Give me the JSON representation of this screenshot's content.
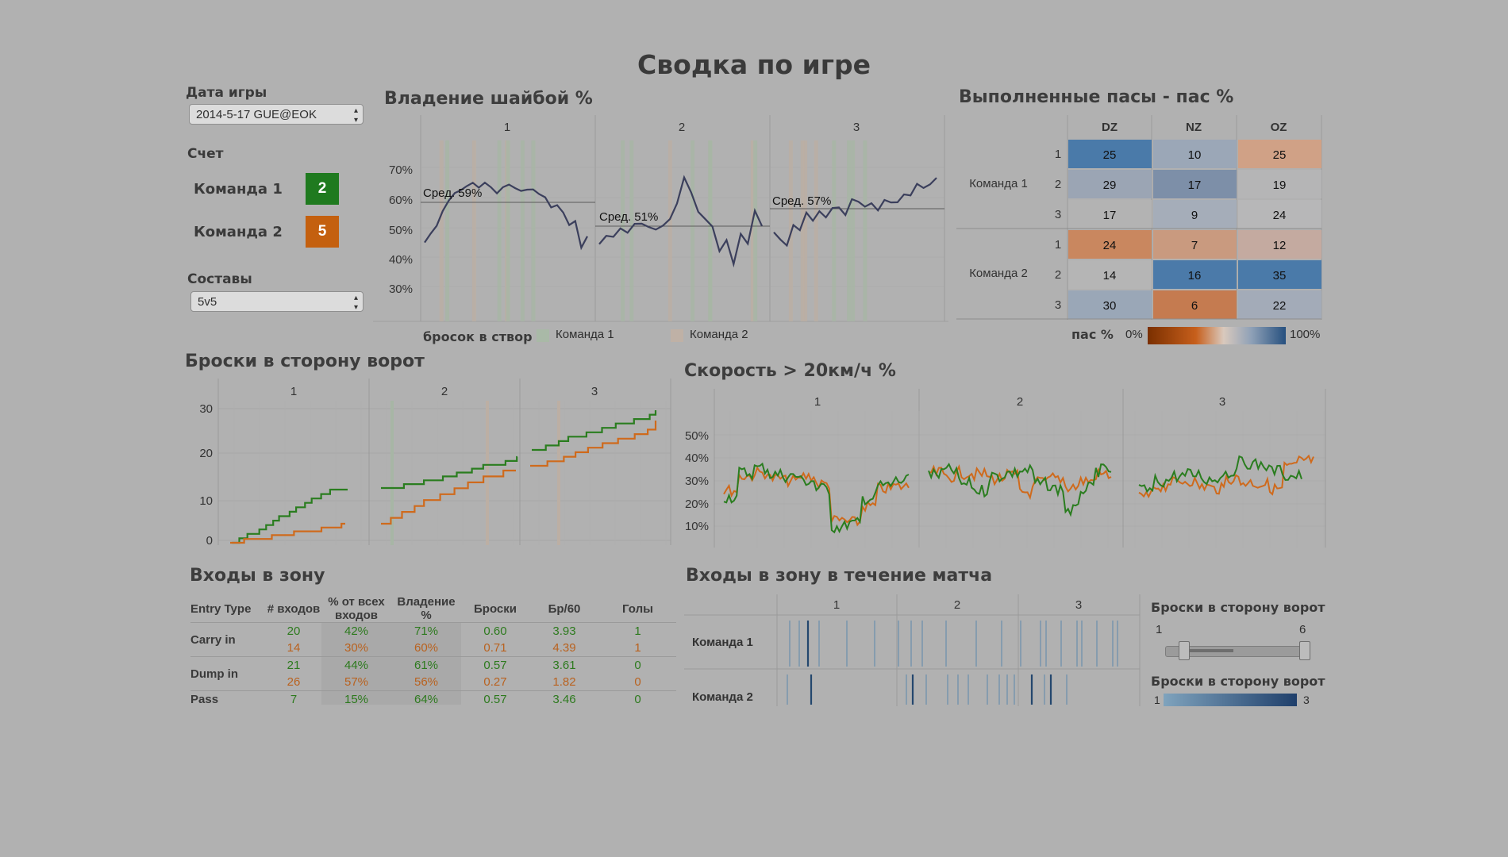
{
  "title": "Сводка по игре",
  "sidebar": {
    "date_label": "Дата игры",
    "date_value": "2014-5-17 GUE@EOK",
    "score_label": "Счет",
    "teams": [
      {
        "name": "Команда 1",
        "score": "2",
        "color": "#1f7a1f"
      },
      {
        "name": "Команда 2",
        "score": "5",
        "color": "#c4600f"
      }
    ],
    "lineup_label": "Составы",
    "lineup_value": "5v5"
  },
  "possession": {
    "title": "Владение шайбой %",
    "periods": [
      "1",
      "2",
      "3"
    ],
    "y_ticks": [
      "70%",
      "60%",
      "50%",
      "40%",
      "30%"
    ],
    "averages": [
      "Сред. 59%",
      "Сред. 51%",
      "Сред. 57%"
    ],
    "legend_title": "бросок в створ",
    "legend_items": [
      "Команда 1",
      "Команда 2"
    ]
  },
  "passes": {
    "title": "Выполненные пасы - пас %",
    "columns": [
      "DZ",
      "NZ",
      "OZ"
    ],
    "groups": [
      {
        "team": "Команда 1",
        "rows": [
          {
            "line": "1",
            "values": [
              "25",
              "10",
              "25"
            ]
          },
          {
            "line": "2",
            "values": [
              "29",
              "17",
              "19"
            ]
          },
          {
            "line": "3",
            "values": [
              "17",
              "9",
              "24"
            ]
          }
        ]
      },
      {
        "team": "Команда 2",
        "rows": [
          {
            "line": "1",
            "values": [
              "24",
              "7",
              "12"
            ]
          },
          {
            "line": "2",
            "values": [
              "14",
              "16",
              "35"
            ]
          },
          {
            "line": "3",
            "values": [
              "30",
              "6",
              "22"
            ]
          }
        ]
      }
    ],
    "cell_colors": [
      [
        "#4a7aa9",
        "#9ba7b7",
        "#d0a186"
      ],
      [
        "#9ba5b4",
        "#7d8fa8",
        "#b5b5b6"
      ],
      [
        "#b3b3b3",
        "#a5adb9",
        "#b7b7b8"
      ],
      [
        "#c9875f",
        "#c99a7f",
        "#c4aaa0"
      ],
      [
        "#b5b5b5",
        "#4b7aa9",
        "#4a7aa9"
      ],
      [
        "#9aa7b7",
        "#c57b50",
        "#a3abb8"
      ]
    ],
    "legend_label": "пас %",
    "legend_min": "0%",
    "legend_max": "100%"
  },
  "shots": {
    "title": "Броски в сторону ворот",
    "periods": [
      "1",
      "2",
      "3"
    ],
    "y_ticks": [
      "30",
      "20",
      "10",
      "0"
    ]
  },
  "speed": {
    "title": "Скорость > 20км/ч %",
    "periods": [
      "1",
      "2",
      "3"
    ],
    "y_ticks": [
      "50%",
      "40%",
      "30%",
      "20%",
      "10%"
    ]
  },
  "zone_entries": {
    "title": "Входы в зону",
    "headers": [
      "Entry Type",
      "# входов",
      "% от всех входов",
      "Владение %",
      "Броски",
      "Бр/60",
      "Голы"
    ],
    "groups": [
      {
        "type": "Carry in",
        "rows": [
          [
            "20",
            "42%",
            "71%",
            "0.60",
            "3.93",
            "1"
          ],
          [
            "14",
            "30%",
            "60%",
            "0.71",
            "4.39",
            "1"
          ]
        ]
      },
      {
        "type": "Dump in",
        "rows": [
          [
            "21",
            "44%",
            "61%",
            "0.57",
            "3.61",
            "0"
          ],
          [
            "26",
            "57%",
            "56%",
            "0.27",
            "1.82",
            "0"
          ]
        ]
      },
      {
        "type": "Pass",
        "rows": [
          [
            "7",
            "15%",
            "64%",
            "0.57",
            "3.46",
            "0"
          ]
        ]
      }
    ]
  },
  "entries_timeline": {
    "title": "Входы в зону в течение матча",
    "periods": [
      "1",
      "2",
      "3"
    ],
    "teams": [
      "Команда 1",
      "Команда 2"
    ]
  },
  "shots_filter": {
    "title": "Броски в сторону ворот",
    "min": "1",
    "max": "6",
    "range": [
      1,
      6
    ]
  },
  "shots_color_legend": {
    "title": "Броски в сторону ворот",
    "min": "1",
    "max": "3"
  },
  "colors": {
    "team1": "#2a7d1f",
    "team2": "#cf6a1c",
    "possession_line": "#3b3f5c",
    "background": "#b1b1b1"
  }
}
